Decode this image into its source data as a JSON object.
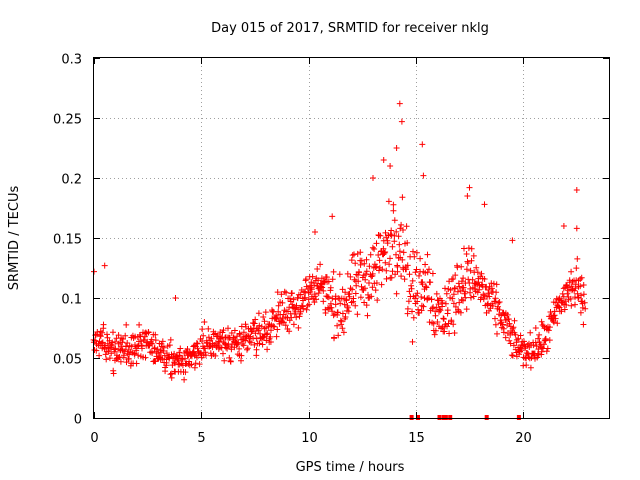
{
  "chart_data": {
    "type": "scatter",
    "title": "Day 015 of 2017, SRMTID for receiver nklg",
    "xlabel": "GPS time / hours",
    "ylabel": "SRMTID / TECUs",
    "xlim": [
      0,
      24
    ],
    "ylim": [
      0,
      0.3
    ],
    "xticks": [
      0,
      5,
      10,
      15,
      20
    ],
    "xtick_labels": [
      "0",
      "5",
      "10",
      "15",
      "20"
    ],
    "yticks": [
      0,
      0.05,
      0.1,
      0.15,
      0.2,
      0.25,
      0.3
    ],
    "ytick_labels": [
      "0",
      "0.05",
      "0.1",
      "0.15",
      "0.2",
      "0.25",
      "0.3"
    ],
    "grid": true,
    "marker": "+",
    "marker_color": "#ff0000",
    "point_spacing_hours": 0.04,
    "series": [
      {
        "name": "SRMTID",
        "trend": [
          [
            0.0,
            0.062
          ],
          [
            0.5,
            0.06
          ],
          [
            1.0,
            0.055
          ],
          [
            1.5,
            0.058
          ],
          [
            2.0,
            0.06
          ],
          [
            2.5,
            0.062
          ],
          [
            3.0,
            0.055
          ],
          [
            3.5,
            0.048
          ],
          [
            4.0,
            0.044
          ],
          [
            4.5,
            0.048
          ],
          [
            5.0,
            0.06
          ],
          [
            5.5,
            0.066
          ],
          [
            6.0,
            0.064
          ],
          [
            6.5,
            0.062
          ],
          [
            7.0,
            0.064
          ],
          [
            7.5,
            0.068
          ],
          [
            8.0,
            0.074
          ],
          [
            8.5,
            0.084
          ],
          [
            9.0,
            0.092
          ],
          [
            9.5,
            0.096
          ],
          [
            10.0,
            0.102
          ],
          [
            10.5,
            0.115
          ],
          [
            11.0,
            0.095
          ],
          [
            11.5,
            0.09
          ],
          [
            12.0,
            0.105
          ],
          [
            12.5,
            0.115
          ],
          [
            13.0,
            0.12
          ],
          [
            13.5,
            0.135
          ],
          [
            14.0,
            0.15
          ],
          [
            14.4,
            0.15
          ],
          [
            14.8,
            0.1
          ],
          [
            15.2,
            0.11
          ],
          [
            15.5,
            0.12
          ],
          [
            16.0,
            0.085
          ],
          [
            16.5,
            0.09
          ],
          [
            17.0,
            0.11
          ],
          [
            17.5,
            0.12
          ],
          [
            18.0,
            0.11
          ],
          [
            18.5,
            0.095
          ],
          [
            19.0,
            0.085
          ],
          [
            19.5,
            0.065
          ],
          [
            20.0,
            0.055
          ],
          [
            20.5,
            0.058
          ],
          [
            21.0,
            0.065
          ],
          [
            21.5,
            0.085
          ],
          [
            22.0,
            0.105
          ],
          [
            22.5,
            0.11
          ],
          [
            22.9,
            0.095
          ]
        ],
        "spread": [
          [
            0.0,
            0.022
          ],
          [
            4.5,
            0.02
          ],
          [
            8.0,
            0.024
          ],
          [
            10.0,
            0.03
          ],
          [
            12.0,
            0.04
          ],
          [
            13.5,
            0.05
          ],
          [
            14.5,
            0.055
          ],
          [
            15.5,
            0.045
          ],
          [
            17.0,
            0.04
          ],
          [
            19.0,
            0.025
          ],
          [
            20.0,
            0.018
          ],
          [
            21.0,
            0.022
          ],
          [
            22.5,
            0.03
          ],
          [
            22.9,
            0.025
          ]
        ],
        "peaks": [
          [
            0.0,
            0.122
          ],
          [
            0.5,
            0.127
          ],
          [
            3.8,
            0.1
          ],
          [
            10.3,
            0.155
          ],
          [
            11.1,
            0.168
          ],
          [
            13.0,
            0.2
          ],
          [
            13.5,
            0.215
          ],
          [
            13.8,
            0.21
          ],
          [
            14.1,
            0.225
          ],
          [
            14.25,
            0.262
          ],
          [
            14.35,
            0.247
          ],
          [
            15.3,
            0.228
          ],
          [
            15.35,
            0.202
          ],
          [
            17.5,
            0.192
          ],
          [
            17.4,
            0.185
          ],
          [
            18.2,
            0.178
          ],
          [
            19.5,
            0.148
          ],
          [
            21.9,
            0.16
          ],
          [
            22.5,
            0.19
          ],
          [
            22.5,
            0.158
          ]
        ],
        "zero_markers": [
          14.8,
          15.1,
          16.1,
          16.3,
          16.4,
          16.6,
          18.3,
          19.8
        ]
      }
    ]
  }
}
